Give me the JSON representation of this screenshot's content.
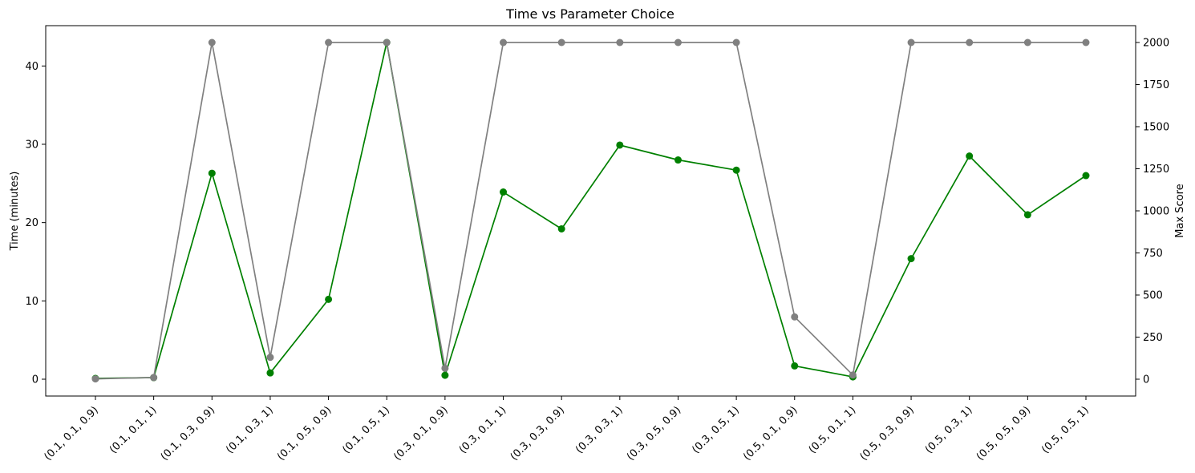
{
  "chart_data": {
    "type": "line",
    "title": "Time vs Parameter Choice",
    "xlabel": "",
    "ylabel": "Time (minutes)",
    "y2label": "Max Score",
    "categories": [
      "(0.1, 0.1, 0.9)",
      "(0.1, 0.1, 1)",
      "(0.1, 0.3, 0.9)",
      "(0.1, 0.3, 1)",
      "(0.1, 0.5, 0.9)",
      "(0.1, 0.5, 1)",
      "(0.3, 0.1, 0.9)",
      "(0.3, 0.1, 1)",
      "(0.3, 0.3, 0.9)",
      "(0.3, 0.3, 1)",
      "(0.3, 0.5, 0.9)",
      "(0.3, 0.5, 1)",
      "(0.5, 0.1, 0.9)",
      "(0.5, 0.1, 1)",
      "(0.5, 0.3, 0.9)",
      "(0.5, 0.3, 1)",
      "(0.5, 0.5, 0.9)",
      "(0.5, 0.5, 1)"
    ],
    "ylim": [
      -2.15,
      45.15
    ],
    "y2lim": [
      -100,
      2100
    ],
    "yticks": [
      0,
      10,
      20,
      30,
      40
    ],
    "y2ticks": [
      0,
      250,
      500,
      750,
      1000,
      1250,
      1500,
      1750,
      2000
    ],
    "grid": false,
    "series": [
      {
        "axis": "left",
        "color": "#008000",
        "values": [
          0.1,
          0.2,
          26.3,
          0.8,
          10.2,
          43.0,
          0.5,
          23.9,
          19.2,
          29.9,
          28.0,
          26.7,
          1.7,
          0.3,
          15.4,
          28.5,
          21.0,
          26.0
        ]
      },
      {
        "axis": "right",
        "color": "#808080",
        "values": [
          2,
          10,
          2000,
          130,
          2000,
          2000,
          65,
          2000,
          2000,
          2000,
          2000,
          2000,
          370,
          25,
          2000,
          2000,
          2000,
          2000
        ]
      }
    ]
  }
}
